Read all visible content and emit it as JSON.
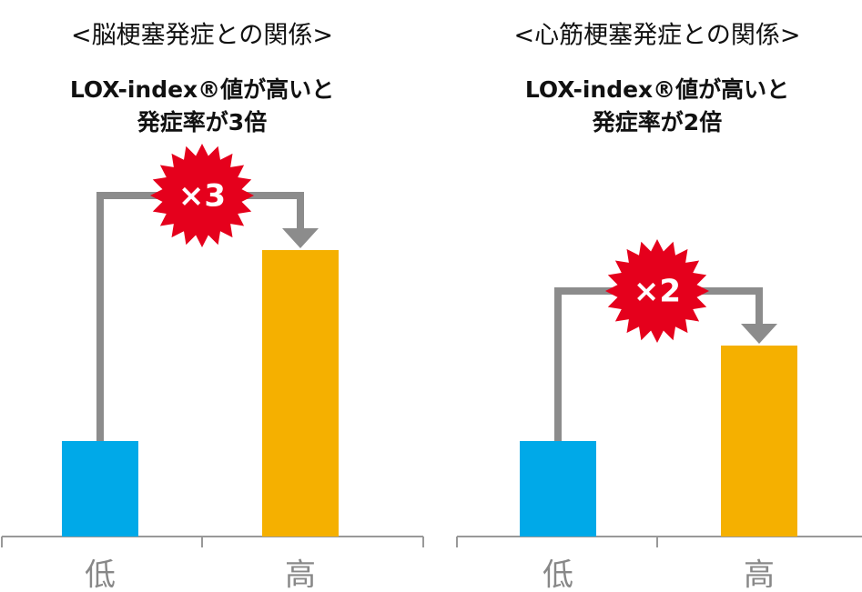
{
  "chart_data": [
    {
      "type": "bar",
      "title": "<脳梗塞発症との関係>",
      "subtitle": [
        "LOX-index®値が高いと",
        "発症率が3倍"
      ],
      "annotation": "×3",
      "categories": [
        "低",
        "高"
      ],
      "values": [
        1,
        3
      ],
      "colors": [
        "#00a9e8",
        "#f5b000"
      ]
    },
    {
      "type": "bar",
      "title": "<心筋梗塞発症との関係>",
      "subtitle": [
        "LOX-index®値が高いと",
        "発症率が2倍"
      ],
      "annotation": "×2",
      "categories": [
        "低",
        "高"
      ],
      "values": [
        1,
        2
      ],
      "colors": [
        "#00a9e8",
        "#f5b000"
      ]
    }
  ]
}
